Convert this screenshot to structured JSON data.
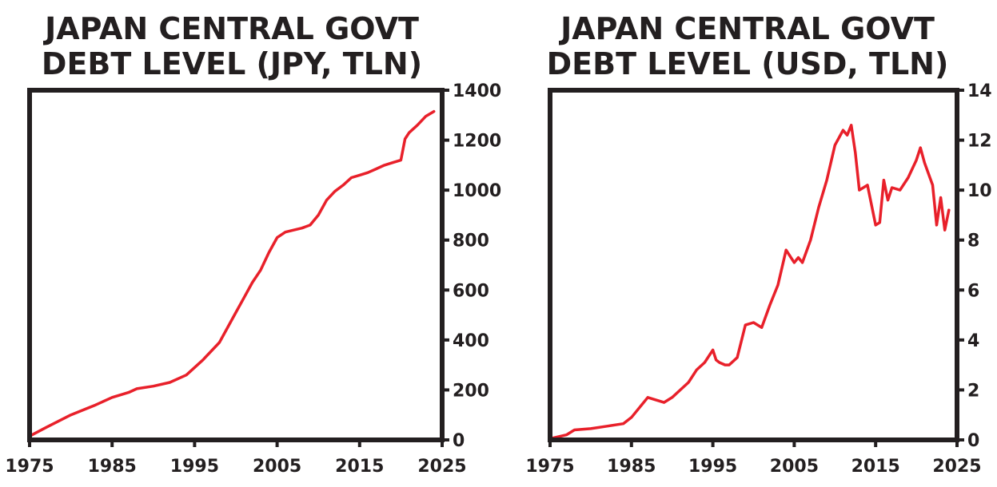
{
  "chart_data": [
    {
      "type": "line",
      "title": [
        "JAPAN CENTRAL GOVT",
        "DEBT LEVEL (JPY, TLN)"
      ],
      "xlabel": "",
      "ylabel": "",
      "xlim": [
        1975,
        2025
      ],
      "ylim": [
        0,
        1400
      ],
      "xticks": [
        1975,
        1985,
        1995,
        2005,
        2015,
        2025
      ],
      "yticks": [
        0,
        200,
        400,
        600,
        800,
        1000,
        1200,
        1400
      ],
      "y_axis_side": "right",
      "grid": false,
      "legend": "none",
      "line_color": "#e8202a",
      "series": [
        {
          "x": [
            1975,
            1977,
            1980,
            1983,
            1985,
            1987,
            1988,
            1990,
            1992,
            1994,
            1995,
            1996,
            1998,
            2000,
            2001,
            2002,
            2003,
            2004,
            2005,
            2006,
            2007,
            2008,
            2009,
            2010,
            2011,
            2012,
            2013,
            2014,
            2015,
            2016,
            2017,
            2018,
            2019,
            2020,
            2020.5,
            2021,
            2022,
            2023,
            2024
          ],
          "y": [
            15,
            50,
            100,
            140,
            170,
            190,
            205,
            215,
            230,
            260,
            290,
            320,
            390,
            510,
            570,
            630,
            680,
            750,
            810,
            832,
            840,
            848,
            860,
            900,
            960,
            995,
            1020,
            1050,
            1060,
            1070,
            1085,
            1100,
            1110,
            1120,
            1205,
            1230,
            1260,
            1295,
            1315
          ]
        }
      ]
    },
    {
      "type": "line",
      "title": [
        "JAPAN CENTRAL GOVT",
        "DEBT LEVEL (USD, TLN)"
      ],
      "xlabel": "",
      "ylabel": "",
      "xlim": [
        1975,
        2025
      ],
      "ylim": [
        0,
        14
      ],
      "xticks": [
        1975,
        1985,
        1995,
        2005,
        2015,
        2025
      ],
      "yticks": [
        0,
        2,
        4,
        6,
        8,
        10,
        12,
        14
      ],
      "y_axis_side": "right",
      "grid": false,
      "legend": "none",
      "line_color": "#e8202a",
      "series": [
        {
          "x": [
            1975,
            1977,
            1978,
            1980,
            1982,
            1984,
            1985,
            1986,
            1987,
            1988,
            1989,
            1990,
            1991,
            1992,
            1993,
            1994,
            1995,
            1995.4,
            1995.8,
            1996.5,
            1997,
            1998,
            1999,
            2000,
            2001,
            2002,
            2003,
            2004,
            2005,
            2005.5,
            2006,
            2007,
            2008,
            2009,
            2010,
            2011,
            2011.5,
            2012,
            2012.5,
            2013,
            2014,
            2015,
            2015.5,
            2016,
            2016.5,
            2017,
            2018,
            2019,
            2020,
            2020.5,
            2021,
            2022,
            2022.5,
            2023,
            2023.5,
            2024
          ],
          "y": [
            0.05,
            0.2,
            0.4,
            0.45,
            0.55,
            0.65,
            0.9,
            1.3,
            1.7,
            1.6,
            1.5,
            1.7,
            2.0,
            2.3,
            2.8,
            3.1,
            3.6,
            3.2,
            3.1,
            3.0,
            3.0,
            3.3,
            4.6,
            4.7,
            4.5,
            5.4,
            6.2,
            7.6,
            7.1,
            7.3,
            7.1,
            8.0,
            9.3,
            10.4,
            11.8,
            12.4,
            12.2,
            12.6,
            11.5,
            10.0,
            10.2,
            8.6,
            8.7,
            10.4,
            9.6,
            10.1,
            10.0,
            10.5,
            11.2,
            11.7,
            11.1,
            10.2,
            8.6,
            9.7,
            8.4,
            9.2
          ]
        }
      ]
    }
  ]
}
